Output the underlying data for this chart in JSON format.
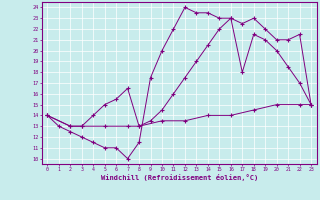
{
  "xlabel": "Windchill (Refroidissement éolien,°C)",
  "bg_color": "#c8ecec",
  "grid_color": "#ffffff",
  "line_color": "#800080",
  "xlim": [
    -0.5,
    23.5
  ],
  "ylim": [
    9.5,
    24.5
  ],
  "xticks": [
    0,
    1,
    2,
    3,
    4,
    5,
    6,
    7,
    8,
    9,
    10,
    11,
    12,
    13,
    14,
    15,
    16,
    17,
    18,
    19,
    20,
    21,
    22,
    23
  ],
  "yticks": [
    10,
    11,
    12,
    13,
    14,
    15,
    16,
    17,
    18,
    19,
    20,
    21,
    22,
    23,
    24
  ],
  "line1_x": [
    0,
    1,
    2,
    3,
    4,
    5,
    6,
    7,
    8,
    9,
    10,
    11,
    12,
    13,
    14,
    15,
    16,
    17,
    18,
    19,
    20,
    21,
    22,
    23
  ],
  "line1_y": [
    14,
    13,
    12.5,
    12,
    11.5,
    11,
    11,
    10,
    11.5,
    17.5,
    20,
    22,
    24,
    23.5,
    23.5,
    23,
    23,
    18,
    21.5,
    21,
    20,
    18.5,
    17,
    15
  ],
  "line2_x": [
    0,
    2,
    3,
    4,
    5,
    6,
    7,
    8,
    9,
    10,
    11,
    12,
    13,
    14,
    15,
    16,
    17,
    18,
    19,
    20,
    21,
    22,
    23
  ],
  "line2_y": [
    14,
    13,
    13,
    14,
    15,
    15.5,
    16.5,
    13,
    13.5,
    14.5,
    16,
    17.5,
    19,
    20.5,
    22,
    23,
    22.5,
    23,
    22,
    21,
    21,
    21.5,
    15
  ],
  "line3_x": [
    0,
    2,
    3,
    5,
    7,
    8,
    10,
    12,
    14,
    16,
    18,
    20,
    22,
    23
  ],
  "line3_y": [
    14,
    13,
    13,
    13,
    13,
    13,
    13.5,
    13.5,
    14,
    14,
    14.5,
    15,
    15,
    15
  ]
}
